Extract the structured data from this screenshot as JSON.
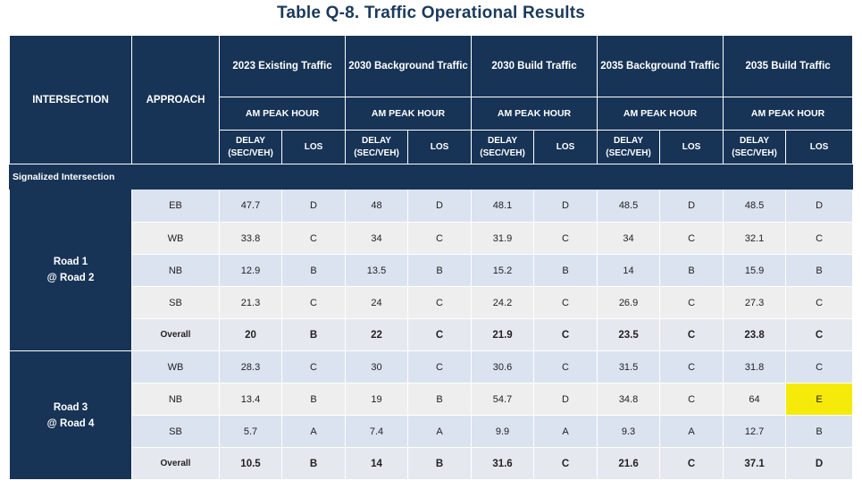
{
  "title": "Table Q-8. Traffic Operational Results",
  "headers": {
    "intersection": "INTERSECTION",
    "approach": "APPROACH",
    "scenarios": [
      "2023 Existing Traffic",
      "2030 Background Traffic",
      "2030 Build Traffic",
      "2035 Background Traffic",
      "2035 Build Traffic"
    ],
    "peak_hour": "AM PEAK HOUR",
    "delay_line1": "DELAY",
    "delay_line2": "(SEC/VEH)",
    "los": "LOS"
  },
  "section": "Signalized Intersection",
  "intersections": [
    {
      "name_line1": "Road 1",
      "name_line2": "@ Road 2",
      "rows": [
        {
          "approach": "EB",
          "values": [
            "47.7",
            "D",
            "48",
            "D",
            "48.1",
            "D",
            "48.5",
            "D",
            "48.5",
            "D"
          ]
        },
        {
          "approach": "WB",
          "values": [
            "33.8",
            "C",
            "34",
            "C",
            "31.9",
            "C",
            "34",
            "C",
            "32.1",
            "C"
          ]
        },
        {
          "approach": "NB",
          "values": [
            "12.9",
            "B",
            "13.5",
            "B",
            "15.2",
            "B",
            "14",
            "B",
            "15.9",
            "B"
          ]
        },
        {
          "approach": "SB",
          "values": [
            "21.3",
            "C",
            "24",
            "C",
            "24.2",
            "C",
            "26.9",
            "C",
            "27.3",
            "C"
          ]
        },
        {
          "approach": "Overall",
          "values": [
            "20",
            "B",
            "22",
            "C",
            "21.9",
            "C",
            "23.5",
            "C",
            "23.8",
            "C"
          ]
        }
      ]
    },
    {
      "name_line1": "Road 3",
      "name_line2": "@ Road 4",
      "rows": [
        {
          "approach": "WB",
          "values": [
            "28.3",
            "C",
            "30",
            "C",
            "30.6",
            "C",
            "31.5",
            "C",
            "31.8",
            "C"
          ]
        },
        {
          "approach": "NB",
          "values": [
            "13.4",
            "B",
            "19",
            "B",
            "54.7",
            "D",
            "34.8",
            "C",
            "64",
            "E"
          ]
        },
        {
          "approach": "SB",
          "values": [
            "5.7",
            "A",
            "7.4",
            "A",
            "9.9",
            "A",
            "9.3",
            "A",
            "12.7",
            "B"
          ]
        },
        {
          "approach": "Overall",
          "values": [
            "10.5",
            "B",
            "14",
            "B",
            "31.6",
            "C",
            "21.6",
            "C",
            "37.1",
            "D"
          ]
        }
      ]
    }
  ],
  "highlight_color": "#f5ea0a"
}
